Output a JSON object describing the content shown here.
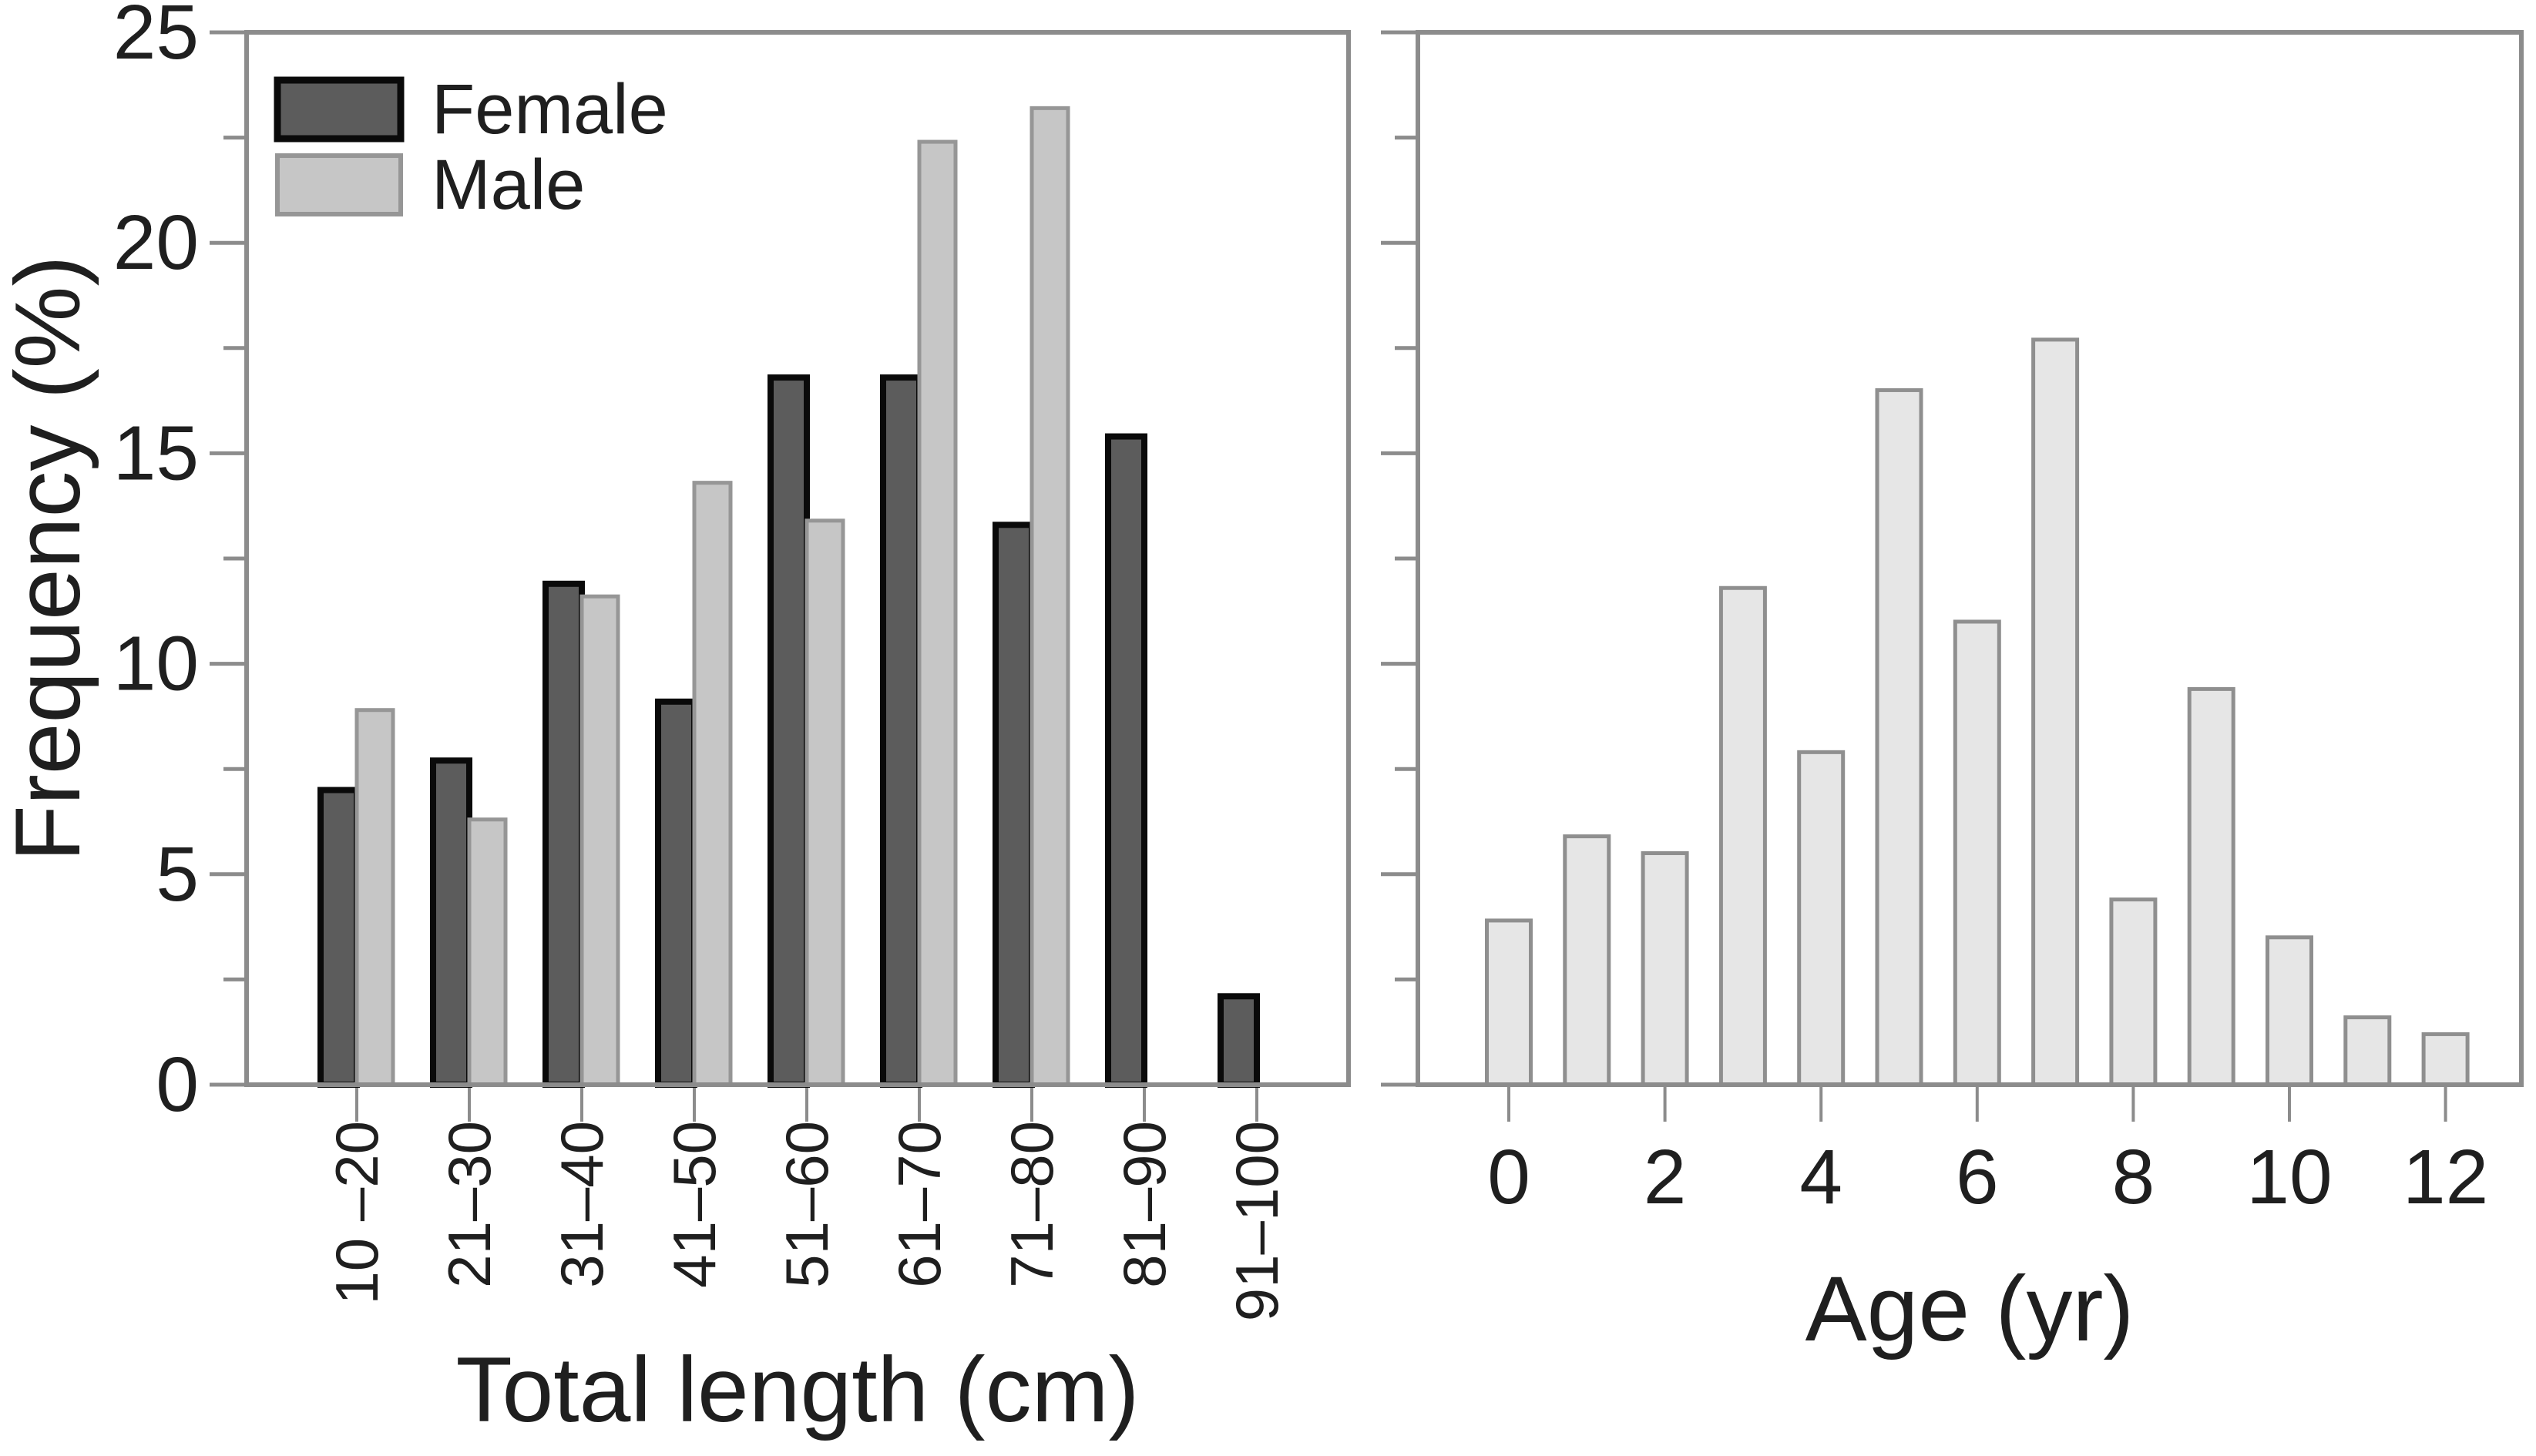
{
  "figure": {
    "description": "Two-panel bar figure: length-frequency by sex and age-frequency",
    "background": "#ffffff"
  },
  "style": {
    "axis_color": "#8c8c8c",
    "text_color": "#1f1f1f"
  },
  "chart_data": [
    {
      "type": "bar",
      "title": "",
      "categories": [
        "10 –20",
        "21–30",
        "31–40",
        "41–50",
        "51–60",
        "61–70",
        "71–80",
        "81–90",
        "91–100"
      ],
      "series": [
        {
          "name": "Female",
          "values": [
            7.0,
            7.7,
            11.9,
            9.1,
            16.8,
            16.8,
            13.3,
            15.4,
            2.1
          ],
          "fill": "#5c5c5c",
          "stroke": "#0a0a0a"
        },
        {
          "name": "Male",
          "values": [
            8.9,
            6.3,
            11.6,
            14.3,
            13.4,
            22.4,
            23.2,
            null,
            null
          ],
          "fill": "#c6c6c6",
          "stroke": "#969696"
        }
      ],
      "xlabel": "Total length (cm)",
      "ylabel": "Frequency (%)",
      "ylim": [
        0,
        25
      ],
      "yticks_major": [
        0,
        5,
        10,
        15,
        20,
        25
      ],
      "ytick_minor_step": 2.5,
      "legend_position": "top-left",
      "grid": false
    },
    {
      "type": "bar",
      "title": "",
      "x": [
        0,
        1,
        2,
        3,
        4,
        5,
        6,
        7,
        8,
        9,
        10,
        11,
        12
      ],
      "values": [
        3.9,
        5.9,
        5.5,
        11.8,
        7.9,
        16.5,
        11.0,
        17.7,
        4.4,
        9.4,
        3.5,
        1.6,
        1.2
      ],
      "xticks_labeled": [
        0,
        2,
        4,
        6,
        8,
        10,
        12
      ],
      "xlabel": "Age (yr)",
      "ylabel": "",
      "ylim": [
        0,
        25
      ],
      "yticks_major": [
        0,
        5,
        10,
        15,
        20,
        25
      ],
      "ytick_minor_step": 2.5,
      "bar_fill": "#e6e6e6",
      "bar_stroke": "#8f8f8f",
      "grid": false
    }
  ]
}
